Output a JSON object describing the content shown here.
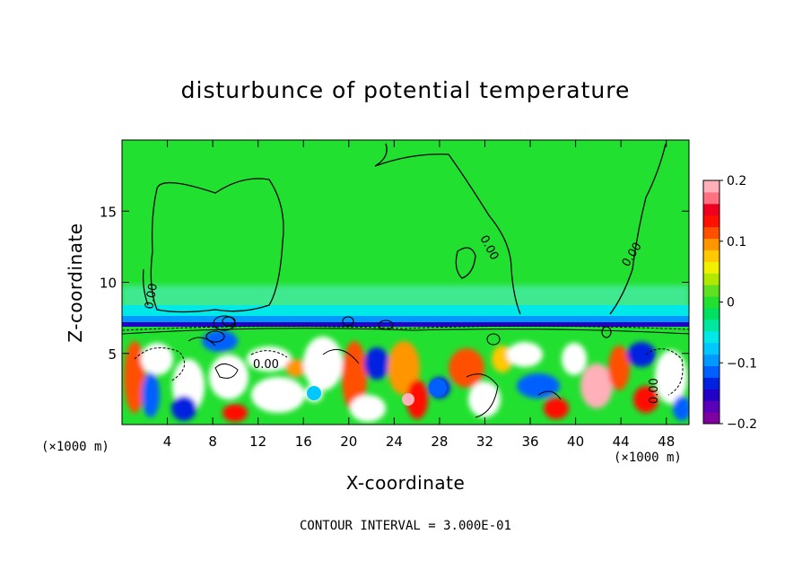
{
  "chart_data": {
    "type": "heatmap",
    "title": "disturbunce of potential temperature",
    "xlabel": "X-coordinate",
    "ylabel": "Z-coordinate",
    "x_unit": "(×1000 m)",
    "y_unit": "(×1000 m)",
    "xlim": [
      0,
      50
    ],
    "ylim": [
      0,
      20
    ],
    "xticks": [
      4,
      8,
      12,
      16,
      20,
      24,
      28,
      32,
      36,
      40,
      44,
      48
    ],
    "yticks": [
      5,
      10,
      15
    ],
    "colorbar": {
      "range": [
        -0.2,
        0.2
      ],
      "tick_labels": [
        "0.2",
        "0.1",
        "0",
        "−0.1",
        "−0.2"
      ],
      "tick_values": [
        0.2,
        0.1,
        0,
        -0.1,
        -0.2
      ],
      "colors": [
        "#7f00a0",
        "#5a00b8",
        "#2200c8",
        "#0022e0",
        "#0060ff",
        "#0099ff",
        "#00c8ff",
        "#00e8e8",
        "#00e8a0",
        "#00e060",
        "#22e030",
        "#60e020",
        "#b0e800",
        "#f0f000",
        "#ffc800",
        "#ff9600",
        "#ff5000",
        "#ff1000",
        "#f00020",
        "#ff7080",
        "#ffb0b8"
      ]
    },
    "contour_labels": [
      "0.00",
      "0.00",
      "0.00",
      "0.00",
      "0.00"
    ],
    "annotation": "CONTOUR INTERVAL = 3.000E-01"
  }
}
